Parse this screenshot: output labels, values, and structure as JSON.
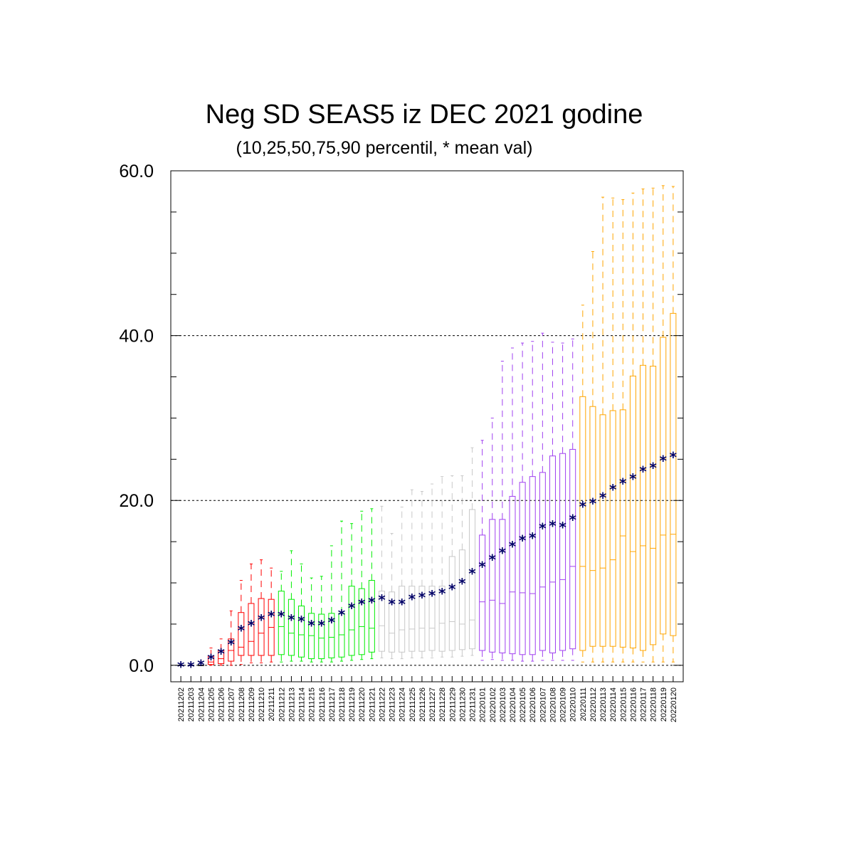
{
  "chart_data": {
    "type": "box",
    "title": "Neg SD SEAS5 iz DEC 2021 godine",
    "subtitle": "(10,25,50,75,90 percentil, * mean val)",
    "xlabel": "",
    "ylabel": "",
    "ylim": [
      -2,
      60
    ],
    "yticks": [
      0,
      20,
      40,
      60
    ],
    "ytick_labels": [
      "0.0",
      "20.0",
      "40.0",
      "60.0"
    ],
    "yminor_step": 5,
    "grid_y_dashed": [
      20,
      40
    ],
    "mean_marker": "*",
    "mean_color": "#000066",
    "categories": [
      "20211202",
      "20211203",
      "20211204",
      "20211205",
      "20211206",
      "20211207",
      "20211208",
      "20211209",
      "20211210",
      "20211211",
      "20211212",
      "20211213",
      "20211214",
      "20211215",
      "20211216",
      "20211217",
      "20211218",
      "20211219",
      "20211220",
      "20211221",
      "20211222",
      "20211223",
      "20211224",
      "20211225",
      "20211226",
      "20211227",
      "20211228",
      "20211229",
      "20211230",
      "20211231",
      "20220101",
      "20220102",
      "20220103",
      "20220104",
      "20220105",
      "20220106",
      "20220107",
      "20220108",
      "20220109",
      "20220110",
      "20220111",
      "20220112",
      "20220113",
      "20220114",
      "20220115",
      "20220116",
      "20220117",
      "20220118",
      "20220119",
      "20220120"
    ],
    "colors": [
      "#000000",
      "#000000",
      "#000000",
      "#ff0000",
      "#ff0000",
      "#ff0000",
      "#ff0000",
      "#ff0000",
      "#ff0000",
      "#ff0000",
      "#00ee00",
      "#00ee00",
      "#00ee00",
      "#00ee00",
      "#00ee00",
      "#00ee00",
      "#00ee00",
      "#00ee00",
      "#00ee00",
      "#00ee00",
      "#c8c8c8",
      "#c8c8c8",
      "#c8c8c8",
      "#c8c8c8",
      "#c8c8c8",
      "#c8c8c8",
      "#c8c8c8",
      "#c8c8c8",
      "#c8c8c8",
      "#c8c8c8",
      "#a040f0",
      "#a040f0",
      "#a040f0",
      "#a040f0",
      "#a040f0",
      "#a040f0",
      "#a040f0",
      "#a040f0",
      "#a040f0",
      "#a040f0",
      "#ffa500",
      "#ffa500",
      "#ffa500",
      "#ffa500",
      "#ffa500",
      "#ffa500",
      "#ffa500",
      "#ffa500",
      "#ffa500",
      "#ffa500"
    ],
    "p10": [
      0,
      0,
      0,
      0,
      0,
      0,
      0.1,
      0.3,
      0.3,
      0.4,
      0.4,
      0.5,
      0.5,
      0.4,
      0.4,
      0.4,
      0.5,
      0.6,
      0.7,
      0.8,
      0.9,
      0.8,
      0.8,
      0.9,
      0.9,
      0.9,
      1.0,
      1.0,
      1.1,
      1.2,
      0.6,
      0.7,
      0.6,
      0.6,
      0.5,
      0.5,
      0.6,
      0.6,
      0.6,
      0.6,
      0.4,
      0.4,
      0.4,
      0.4,
      0.4,
      0.4,
      0.4,
      0.4,
      0.4,
      0.4
    ],
    "p25": [
      0,
      0,
      0,
      0.1,
      0.2,
      0.5,
      1.2,
      1.2,
      1.2,
      1.2,
      1.3,
      1.2,
      1.0,
      0.8,
      0.8,
      0.9,
      1.0,
      1.2,
      1.3,
      1.6,
      1.7,
      1.6,
      1.6,
      1.7,
      1.7,
      1.8,
      1.7,
      1.8,
      1.9,
      2.0,
      1.8,
      1.6,
      1.5,
      1.4,
      1.3,
      1.3,
      1.8,
      1.5,
      1.8,
      2.0,
      1.8,
      2.3,
      2.3,
      2.3,
      2.2,
      2.1,
      1.8,
      2.5,
      3.8,
      3.6
    ],
    "p50": [
      0,
      0,
      0,
      0.4,
      0.8,
      1.8,
      2.2,
      2.9,
      3.9,
      4.6,
      4.7,
      3.9,
      3.7,
      3.6,
      3.3,
      3.4,
      3.7,
      4.3,
      4.7,
      4.5,
      4.8,
      3.9,
      4.3,
      4.4,
      4.5,
      4.5,
      5.1,
      5.3,
      5.0,
      5.5,
      7.7,
      7.9,
      7.5,
      8.9,
      8.8,
      8.7,
      9.5,
      10.1,
      10.4,
      12.0,
      12.0,
      11.5,
      11.8,
      12.8,
      15.7,
      13.8,
      14.5,
      14.2,
      15.8,
      15.9
    ],
    "p75": [
      0,
      0,
      0,
      1.1,
      1.8,
      3.2,
      6.4,
      7.5,
      8.1,
      8.0,
      9.0,
      8.0,
      7.2,
      6.3,
      6.2,
      6.3,
      6.3,
      9.6,
      9.3,
      10.3,
      9.0,
      8.9,
      9.6,
      9.6,
      9.6,
      9.6,
      9.6,
      13.2,
      14.0,
      18.9,
      15.8,
      17.7,
      17.7,
      20.5,
      22.2,
      22.9,
      23.4,
      25.4,
      25.7,
      26.2,
      32.6,
      31.4,
      30.4,
      30.9,
      31.0,
      35.1,
      36.4,
      36.3,
      39.8,
      42.7
    ],
    "p90": [
      0,
      0,
      0,
      2.1,
      3.2,
      6.6,
      10.3,
      12.3,
      12.8,
      11.8,
      11.4,
      13.9,
      12.3,
      10.6,
      10.8,
      14.5,
      17.5,
      17.2,
      18.7,
      19.0,
      19.3,
      16.0,
      19.2,
      21.3,
      21.1,
      22.0,
      22.9,
      23.0,
      23.0,
      26.4,
      27.3,
      30.0,
      36.9,
      38.5,
      39.1,
      39.3,
      40.3,
      39.2,
      39.1,
      39.6,
      43.7,
      50.2,
      56.8,
      56.7,
      56.5,
      57.3,
      57.8,
      57.9,
      58.2,
      58.1
    ],
    "mean": [
      0,
      0,
      0.2,
      0.9,
      1.6,
      2.7,
      4.4,
      5.0,
      5.7,
      6.1,
      6.1,
      5.7,
      5.5,
      5.0,
      5.0,
      5.4,
      6.3,
      7.1,
      7.6,
      7.8,
      8.1,
      7.6,
      7.6,
      8.2,
      8.4,
      8.6,
      8.9,
      9.4,
      10.1,
      11.3,
      12.1,
      13.0,
      13.8,
      14.6,
      15.3,
      15.6,
      16.8,
      17.1,
      16.9,
      17.8,
      19.4,
      19.8,
      20.5,
      21.5,
      22.2,
      22.8,
      23.7,
      24.1,
      25.0,
      25.4
    ]
  }
}
